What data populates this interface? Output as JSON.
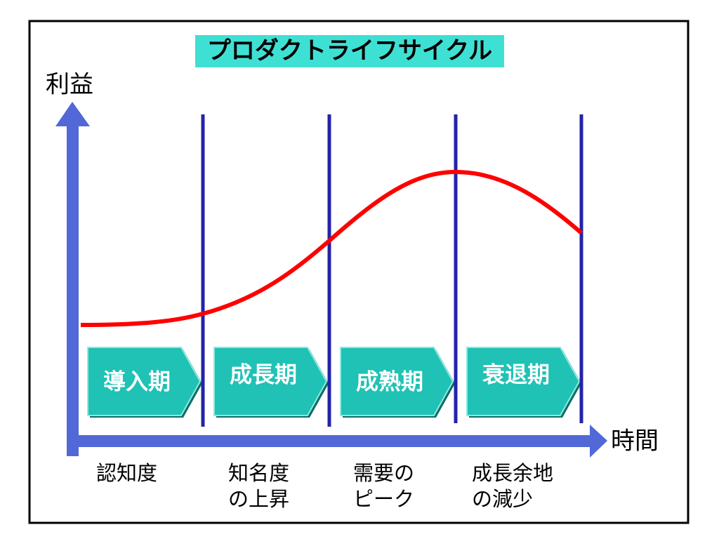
{
  "title": "プロダクトライフサイクル",
  "axes": {
    "y_label": "利益",
    "x_label": "時間"
  },
  "stages": [
    {
      "label": "導入期",
      "description": [
        "認知度"
      ]
    },
    {
      "label": "成長期",
      "description": [
        "知名度",
        "の上昇"
      ]
    },
    {
      "label": "成熟期",
      "description": [
        "需要の",
        "ピーク"
      ]
    },
    {
      "label": "衰退期",
      "description": [
        "成長余地",
        "の減少"
      ]
    }
  ]
}
